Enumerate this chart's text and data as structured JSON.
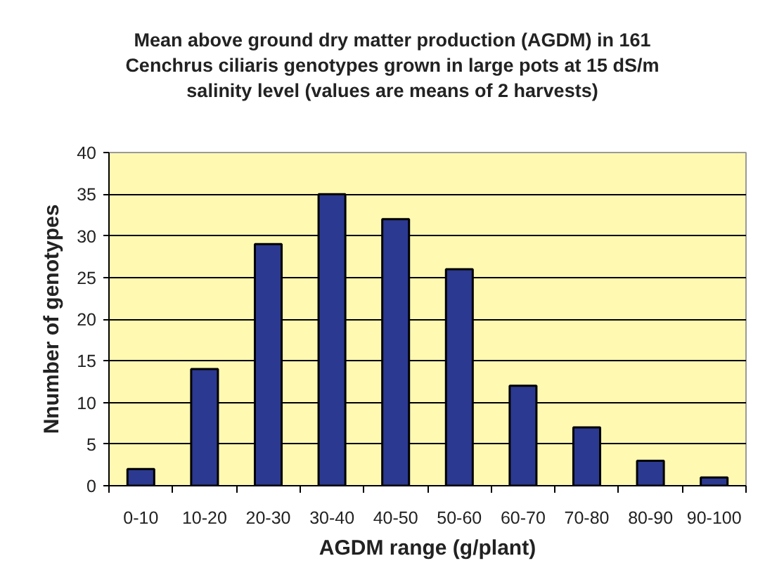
{
  "chart_data": {
    "type": "bar",
    "title": "Mean above ground dry matter production (AGDM) in 161 Cenchrus ciliaris genotypes grown in large pots at 15 dS/m salinity level (values are means of 2 harvests)",
    "xlabel": "AGDM range (g/plant)",
    "ylabel": "Nnumber of genotypes",
    "categories": [
      "0-10",
      "10-20",
      "20-30",
      "30-40",
      "40-50",
      "50-60",
      "60-70",
      "70-80",
      "80-90",
      "90-100"
    ],
    "values": [
      2,
      14,
      29,
      35,
      32,
      26,
      12,
      7,
      3,
      1
    ],
    "color": "#2b3990",
    "ylim": [
      0,
      40
    ],
    "yticks": [
      0,
      5,
      10,
      15,
      20,
      25,
      30,
      35,
      40
    ],
    "grid": "y"
  }
}
